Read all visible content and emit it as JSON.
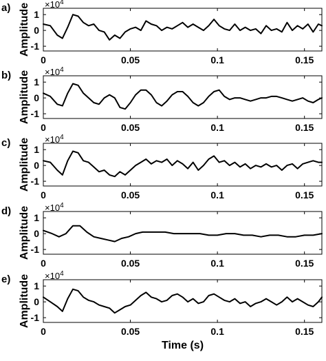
{
  "chart_data": [
    {
      "type": "line",
      "panel_label": "a)",
      "ylabel": "Amplitude",
      "exponent_label": "×10",
      "exponent_power": "4",
      "xlim": [
        0,
        0.16
      ],
      "ylim": [
        -1.3,
        1.4
      ],
      "xticks": [
        "0",
        "0.05",
        "0.1",
        "0.15"
      ],
      "yticks": [
        "1",
        "0",
        "-1"
      ],
      "xlabel": "",
      "series": [
        {
          "x": [
            0,
            0.004,
            0.008,
            0.011,
            0.014,
            0.017,
            0.02,
            0.023,
            0.026,
            0.029,
            0.032,
            0.035,
            0.038,
            0.041,
            0.044,
            0.047,
            0.05,
            0.053,
            0.056,
            0.059,
            0.062,
            0.065,
            0.068,
            0.071,
            0.074,
            0.077,
            0.08,
            0.083,
            0.086,
            0.089,
            0.092,
            0.095,
            0.098,
            0.101,
            0.104,
            0.107,
            0.11,
            0.113,
            0.116,
            0.119,
            0.122,
            0.125,
            0.128,
            0.131,
            0.134,
            0.137,
            0.14,
            0.143,
            0.146,
            0.149,
            0.152,
            0.155,
            0.158,
            0.16
          ],
          "y": [
            0.4,
            0.3,
            -0.3,
            -0.5,
            0.2,
            1.0,
            0.9,
            0.5,
            0.3,
            0.4,
            0.0,
            -0.1,
            -0.6,
            -0.3,
            -0.5,
            -0.1,
            0.1,
            0.2,
            0.0,
            0.6,
            0.4,
            0.3,
            0.0,
            0.2,
            0.1,
            0.3,
            0.5,
            0.2,
            0.4,
            0.2,
            0.0,
            0.3,
            0.7,
            0.3,
            0.1,
            0.0,
            0.4,
            0.0,
            0.2,
            0.0,
            0.1,
            -0.2,
            0.3,
            0.0,
            0.1,
            -0.1,
            0.5,
            0.0,
            0.3,
            0.1,
            0.4,
            -0.1,
            0.4,
            0.3
          ]
        }
      ]
    },
    {
      "type": "line",
      "panel_label": "b)",
      "ylabel": "Amplitude",
      "exponent_label": "×10",
      "exponent_power": "4",
      "xlim": [
        0,
        0.16
      ],
      "ylim": [
        -1.3,
        1.4
      ],
      "xticks": [
        "0",
        "0.05",
        "0.1",
        "0.15"
      ],
      "yticks": [
        "1",
        "0",
        "-1"
      ],
      "xlabel": "",
      "series": [
        {
          "x": [
            0,
            0.004,
            0.008,
            0.011,
            0.014,
            0.017,
            0.02,
            0.023,
            0.026,
            0.029,
            0.032,
            0.035,
            0.038,
            0.041,
            0.044,
            0.047,
            0.05,
            0.053,
            0.056,
            0.059,
            0.062,
            0.065,
            0.068,
            0.071,
            0.074,
            0.077,
            0.08,
            0.083,
            0.086,
            0.089,
            0.092,
            0.095,
            0.098,
            0.101,
            0.104,
            0.107,
            0.11,
            0.113,
            0.116,
            0.119,
            0.122,
            0.125,
            0.128,
            0.131,
            0.134,
            0.137,
            0.14,
            0.143,
            0.146,
            0.149,
            0.152,
            0.155,
            0.158,
            0.16
          ],
          "y": [
            0.3,
            0.1,
            -0.4,
            -0.5,
            0.3,
            0.9,
            0.8,
            0.3,
            0.0,
            -0.3,
            -0.4,
            0.0,
            0.2,
            0.0,
            -0.6,
            -0.7,
            -0.3,
            0.2,
            0.5,
            0.5,
            0.2,
            -0.3,
            -0.5,
            -0.2,
            0.2,
            0.4,
            0.4,
            0.1,
            -0.3,
            -0.5,
            -0.3,
            0.1,
            0.4,
            0.5,
            0.1,
            -0.1,
            0.0,
            0.0,
            -0.1,
            -0.2,
            -0.1,
            0.0,
            0.0,
            0.1,
            0.1,
            0.0,
            -0.1,
            -0.2,
            -0.1,
            0.0,
            -0.2,
            -0.3,
            -0.1,
            0.0
          ]
        }
      ]
    },
    {
      "type": "line",
      "panel_label": "c)",
      "ylabel": "Amplitude",
      "exponent_label": "×10",
      "exponent_power": "4",
      "xlim": [
        0,
        0.16
      ],
      "ylim": [
        -1.3,
        1.4
      ],
      "xticks": [
        "0",
        "0.05",
        "0.1",
        "0.15"
      ],
      "yticks": [
        "1",
        "0",
        "-1"
      ],
      "xlabel": "",
      "series": [
        {
          "x": [
            0,
            0.004,
            0.008,
            0.011,
            0.014,
            0.017,
            0.02,
            0.023,
            0.026,
            0.029,
            0.032,
            0.035,
            0.038,
            0.041,
            0.044,
            0.047,
            0.05,
            0.053,
            0.056,
            0.059,
            0.062,
            0.065,
            0.068,
            0.071,
            0.074,
            0.077,
            0.08,
            0.083,
            0.086,
            0.089,
            0.092,
            0.095,
            0.098,
            0.101,
            0.104,
            0.107,
            0.11,
            0.113,
            0.116,
            0.119,
            0.122,
            0.125,
            0.128,
            0.131,
            0.134,
            0.137,
            0.14,
            0.143,
            0.146,
            0.149,
            0.152,
            0.155,
            0.158,
            0.16
          ],
          "y": [
            0.3,
            0.2,
            -0.3,
            -0.6,
            0.3,
            0.9,
            0.8,
            0.3,
            0.2,
            -0.1,
            -0.4,
            -0.3,
            -0.6,
            -0.7,
            -0.4,
            -0.6,
            -0.3,
            0.0,
            0.2,
            0.4,
            0.1,
            0.3,
            0.2,
            0.4,
            0.0,
            0.3,
            0.1,
            -0.2,
            0.2,
            -0.3,
            0.0,
            0.4,
            0.6,
            0.2,
            0.3,
            0.0,
            0.2,
            -0.1,
            0.1,
            -0.2,
            0.0,
            -0.1,
            0.1,
            -0.1,
            0.0,
            -0.3,
            0.0,
            0.1,
            -0.2,
            0.1,
            0.2,
            0.3,
            0.2,
            0.2
          ]
        }
      ]
    },
    {
      "type": "line",
      "panel_label": "d)",
      "ylabel": "Amplitude",
      "exponent_label": "×10",
      "exponent_power": "4",
      "xlim": [
        0,
        0.16
      ],
      "ylim": [
        -1.3,
        1.4
      ],
      "xticks": [
        "0",
        "0.05",
        "0.1",
        "0.15"
      ],
      "yticks": [
        "1",
        "0",
        "-1"
      ],
      "xlabel": "",
      "series": [
        {
          "x": [
            0,
            0.005,
            0.009,
            0.013,
            0.017,
            0.021,
            0.025,
            0.029,
            0.033,
            0.037,
            0.041,
            0.045,
            0.049,
            0.053,
            0.057,
            0.061,
            0.065,
            0.07,
            0.075,
            0.08,
            0.085,
            0.09,
            0.095,
            0.1,
            0.105,
            0.11,
            0.115,
            0.12,
            0.125,
            0.13,
            0.135,
            0.14,
            0.145,
            0.15,
            0.155,
            0.16
          ],
          "y": [
            0.2,
            0.0,
            -0.2,
            0.0,
            0.5,
            0.5,
            0.1,
            -0.2,
            -0.3,
            -0.4,
            -0.5,
            -0.3,
            -0.2,
            0.0,
            0.1,
            0.1,
            0.1,
            0.1,
            0.0,
            0.0,
            0.0,
            0.0,
            -0.1,
            -0.1,
            0.0,
            0.0,
            -0.1,
            -0.1,
            -0.2,
            -0.1,
            -0.1,
            -0.2,
            -0.2,
            -0.1,
            -0.1,
            0.0
          ]
        }
      ]
    },
    {
      "type": "line",
      "panel_label": "e)",
      "ylabel": "Amplitude",
      "exponent_label": "×10",
      "exponent_power": "4",
      "xlim": [
        0,
        0.16
      ],
      "ylim": [
        -1.3,
        1.4
      ],
      "xticks": [
        "0",
        "0.05",
        "0.1",
        "0.15"
      ],
      "yticks": [
        "1",
        "0",
        "-1"
      ],
      "xlabel": "Time (s)",
      "series": [
        {
          "x": [
            0,
            0.004,
            0.008,
            0.011,
            0.014,
            0.017,
            0.02,
            0.023,
            0.026,
            0.029,
            0.032,
            0.035,
            0.038,
            0.041,
            0.044,
            0.047,
            0.05,
            0.053,
            0.056,
            0.059,
            0.062,
            0.065,
            0.068,
            0.071,
            0.074,
            0.077,
            0.08,
            0.083,
            0.086,
            0.089,
            0.092,
            0.095,
            0.098,
            0.101,
            0.104,
            0.107,
            0.11,
            0.113,
            0.116,
            0.119,
            0.122,
            0.125,
            0.128,
            0.131,
            0.134,
            0.137,
            0.14,
            0.143,
            0.146,
            0.149,
            0.152,
            0.155,
            0.158,
            0.16
          ],
          "y": [
            0.3,
            0.0,
            -0.3,
            -0.6,
            0.2,
            0.8,
            0.7,
            0.3,
            0.1,
            0.0,
            -0.2,
            -0.3,
            -0.4,
            -0.7,
            -0.5,
            -0.3,
            -0.2,
            0.1,
            0.4,
            0.6,
            0.3,
            0.2,
            0.0,
            0.1,
            0.4,
            0.5,
            0.3,
            0.0,
            0.2,
            -0.1,
            0.0,
            0.4,
            0.5,
            0.3,
            0.1,
            0.0,
            0.2,
            -0.1,
            0.0,
            -0.3,
            -0.1,
            0.0,
            0.2,
            0.0,
            -0.2,
            0.0,
            0.3,
            0.0,
            0.2,
            0.0,
            -0.2,
            -0.3,
            0.0,
            0.3
          ]
        }
      ]
    }
  ]
}
